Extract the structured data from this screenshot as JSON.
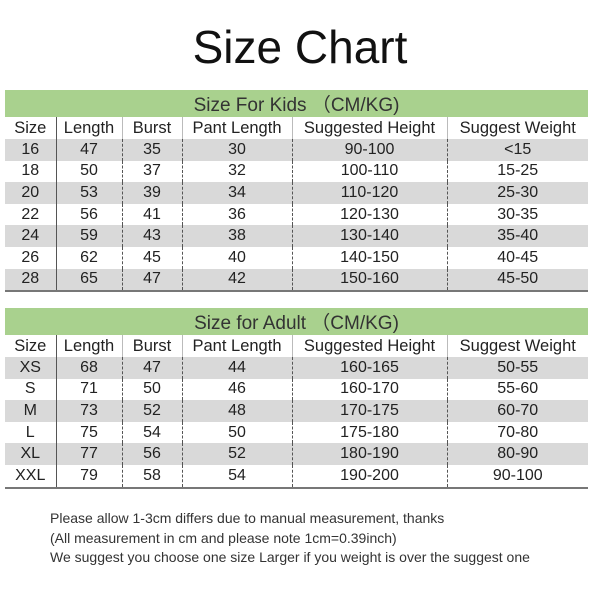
{
  "title": "Size Chart",
  "kids": {
    "title": "Size For Kids （CM/KG)",
    "headers": [
      "Size",
      "Length",
      "Burst",
      "Pant Length",
      "Suggested Height",
      "Suggest Weight"
    ],
    "rows": [
      [
        "16",
        "47",
        "35",
        "30",
        "90-100",
        "<15"
      ],
      [
        "18",
        "50",
        "37",
        "32",
        "100-110",
        "15-25"
      ],
      [
        "20",
        "53",
        "39",
        "34",
        "110-120",
        "25-30"
      ],
      [
        "22",
        "56",
        "41",
        "36",
        "120-130",
        "30-35"
      ],
      [
        "24",
        "59",
        "43",
        "38",
        "130-140",
        "35-40"
      ],
      [
        "26",
        "62",
        "45",
        "40",
        "140-150",
        "40-45"
      ],
      [
        "28",
        "65",
        "47",
        "42",
        "150-160",
        "45-50"
      ]
    ]
  },
  "adult": {
    "title": "Size for Adult （CM/KG)",
    "headers": [
      "Size",
      "Length",
      "Burst",
      "Pant Length",
      "Suggested Height",
      "Suggest Weight"
    ],
    "rows": [
      [
        "XS",
        "68",
        "47",
        "44",
        "160-165",
        "50-55"
      ],
      [
        "S",
        "71",
        "50",
        "46",
        "160-170",
        "55-60"
      ],
      [
        "M",
        "73",
        "52",
        "48",
        "170-175",
        "60-70"
      ],
      [
        "L",
        "75",
        "54",
        "50",
        "175-180",
        "70-80"
      ],
      [
        "XL",
        "77",
        "56",
        "52",
        "180-190",
        "80-90"
      ],
      [
        "XXL",
        "79",
        "58",
        "54",
        "190-200",
        "90-100"
      ]
    ]
  },
  "notes": [
    "Please allow 1-3cm differs due to manual measurement, thanks",
    "(All measurement in cm and please note 1cm=0.39inch)",
    "We suggest you choose one size Larger if you weight is over the suggest one"
  ],
  "colors": {
    "header_green": "#a9d18e",
    "row_gray": "#d9d9d9"
  }
}
